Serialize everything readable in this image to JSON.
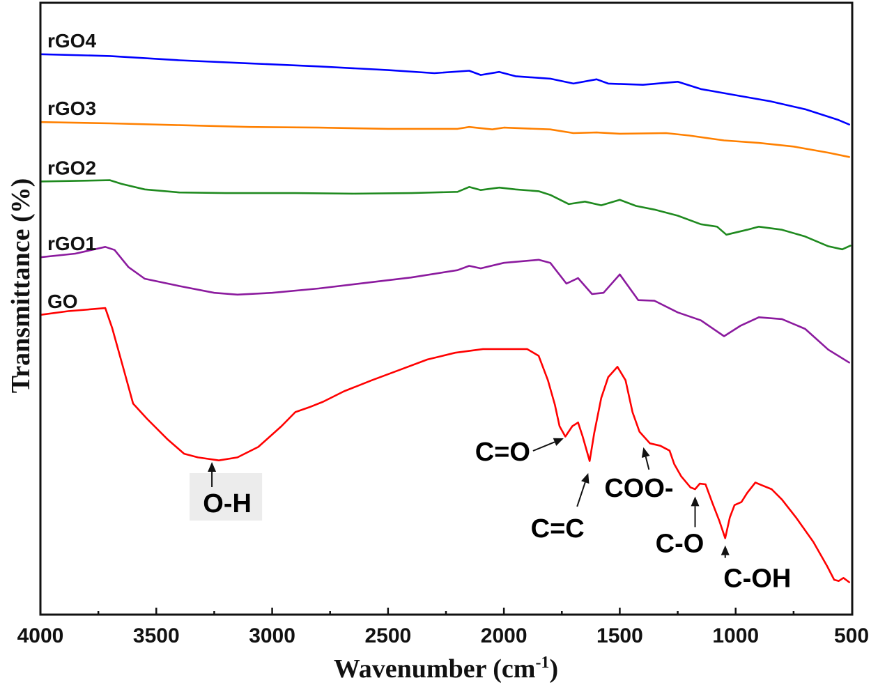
{
  "chart_data": {
    "type": "line",
    "title": "",
    "xlabel": "Wavenumber (cm",
    "xlabel_superscript": "-1",
    "xlabel_suffix": ")",
    "ylabel": "Transmittance (%)",
    "xlim": [
      4000,
      500
    ],
    "ylim": [
      0,
      100
    ],
    "y_units": "arbitrary (offset, no tick labels)",
    "x_ticks": [
      4000,
      3500,
      3000,
      2500,
      2000,
      1500,
      1000,
      500
    ],
    "x_tick_labels": [
      "4000",
      "3500",
      "3000",
      "2500",
      "2000",
      "1500",
      "1000",
      "500"
    ],
    "x_minor_ticks": [
      3750,
      3250,
      2750,
      2250,
      1750,
      1250,
      750
    ],
    "grid": false,
    "legend": "inline labels at left of each curve",
    "series": [
      {
        "name": "rGO4",
        "color": "#0000ff",
        "points": [
          [
            4000,
            91.6
          ],
          [
            3700,
            91.3
          ],
          [
            3400,
            90.6
          ],
          [
            3100,
            90.1
          ],
          [
            2800,
            89.6
          ],
          [
            2500,
            89.0
          ],
          [
            2300,
            88.5
          ],
          [
            2150,
            88.9
          ],
          [
            2100,
            88.2
          ],
          [
            2020,
            88.7
          ],
          [
            1950,
            88.0
          ],
          [
            1800,
            87.6
          ],
          [
            1700,
            86.8
          ],
          [
            1600,
            87.5
          ],
          [
            1550,
            86.8
          ],
          [
            1400,
            86.6
          ],
          [
            1250,
            87.1
          ],
          [
            1150,
            85.9
          ],
          [
            1000,
            84.9
          ],
          [
            850,
            83.9
          ],
          [
            700,
            82.6
          ],
          [
            560,
            80.9
          ],
          [
            510,
            80.1
          ]
        ]
      },
      {
        "name": "rGO3",
        "color": "#ff8000",
        "points": [
          [
            4000,
            80.5
          ],
          [
            3700,
            80.3
          ],
          [
            3400,
            80.0
          ],
          [
            3100,
            79.7
          ],
          [
            2800,
            79.6
          ],
          [
            2500,
            79.4
          ],
          [
            2200,
            79.4
          ],
          [
            2150,
            79.7
          ],
          [
            2050,
            79.3
          ],
          [
            2000,
            79.6
          ],
          [
            1800,
            79.3
          ],
          [
            1700,
            78.7
          ],
          [
            1600,
            78.8
          ],
          [
            1500,
            78.6
          ],
          [
            1300,
            78.7
          ],
          [
            1200,
            78.3
          ],
          [
            1050,
            77.5
          ],
          [
            900,
            77.1
          ],
          [
            750,
            76.5
          ],
          [
            600,
            75.5
          ],
          [
            510,
            74.8
          ]
        ]
      },
      {
        "name": "rGO2",
        "color": "#1f8a1f",
        "points": [
          [
            4000,
            70.8
          ],
          [
            3700,
            71.0
          ],
          [
            3650,
            70.4
          ],
          [
            3550,
            69.5
          ],
          [
            3400,
            69.0
          ],
          [
            3200,
            68.9
          ],
          [
            2900,
            68.9
          ],
          [
            2650,
            68.8
          ],
          [
            2400,
            68.9
          ],
          [
            2200,
            69.1
          ],
          [
            2150,
            69.9
          ],
          [
            2100,
            69.4
          ],
          [
            2020,
            69.8
          ],
          [
            1950,
            69.5
          ],
          [
            1850,
            69.2
          ],
          [
            1800,
            68.6
          ],
          [
            1720,
            67.1
          ],
          [
            1650,
            67.5
          ],
          [
            1580,
            66.9
          ],
          [
            1500,
            67.8
          ],
          [
            1430,
            66.8
          ],
          [
            1350,
            66.2
          ],
          [
            1250,
            65.2
          ],
          [
            1150,
            63.8
          ],
          [
            1080,
            63.4
          ],
          [
            1040,
            62.1
          ],
          [
            950,
            62.9
          ],
          [
            900,
            63.4
          ],
          [
            800,
            62.9
          ],
          [
            700,
            61.8
          ],
          [
            600,
            60.2
          ],
          [
            540,
            59.7
          ],
          [
            505,
            60.3
          ]
        ]
      },
      {
        "name": "rGO1",
        "color": "#8b1a9e",
        "points": [
          [
            4000,
            58.4
          ],
          [
            3850,
            59.0
          ],
          [
            3720,
            60.1
          ],
          [
            3680,
            59.6
          ],
          [
            3620,
            56.8
          ],
          [
            3550,
            54.9
          ],
          [
            3400,
            53.7
          ],
          [
            3250,
            52.6
          ],
          [
            3150,
            52.3
          ],
          [
            3000,
            52.6
          ],
          [
            2800,
            53.3
          ],
          [
            2600,
            54.2
          ],
          [
            2400,
            55.1
          ],
          [
            2200,
            56.3
          ],
          [
            2150,
            57.0
          ],
          [
            2100,
            56.6
          ],
          [
            2000,
            57.5
          ],
          [
            1850,
            58.0
          ],
          [
            1800,
            57.5
          ],
          [
            1730,
            54.1
          ],
          [
            1680,
            55.0
          ],
          [
            1620,
            52.4
          ],
          [
            1570,
            52.6
          ],
          [
            1500,
            55.6
          ],
          [
            1420,
            51.4
          ],
          [
            1350,
            51.3
          ],
          [
            1250,
            49.4
          ],
          [
            1150,
            48.1
          ],
          [
            1050,
            45.5
          ],
          [
            980,
            47.2
          ],
          [
            900,
            48.6
          ],
          [
            800,
            48.3
          ],
          [
            700,
            46.7
          ],
          [
            600,
            43.3
          ],
          [
            510,
            41.2
          ]
        ]
      },
      {
        "name": "GO",
        "color": "#ff0000",
        "points": [
          [
            4000,
            49.0
          ],
          [
            3880,
            49.6
          ],
          [
            3720,
            50.1
          ],
          [
            3690,
            46.8
          ],
          [
            3640,
            40.0
          ],
          [
            3600,
            34.5
          ],
          [
            3540,
            32.0
          ],
          [
            3450,
            28.6
          ],
          [
            3380,
            26.3
          ],
          [
            3320,
            25.7
          ],
          [
            3230,
            25.2
          ],
          [
            3150,
            25.7
          ],
          [
            3060,
            27.4
          ],
          [
            2960,
            30.8
          ],
          [
            2900,
            33.1
          ],
          [
            2840,
            33.9
          ],
          [
            2780,
            34.8
          ],
          [
            2690,
            36.5
          ],
          [
            2570,
            38.3
          ],
          [
            2450,
            40.0
          ],
          [
            2330,
            41.7
          ],
          [
            2210,
            42.8
          ],
          [
            2090,
            43.4
          ],
          [
            2030,
            43.4
          ],
          [
            1900,
            43.4
          ],
          [
            1850,
            42.3
          ],
          [
            1810,
            38.3
          ],
          [
            1780,
            34.3
          ],
          [
            1760,
            30.8
          ],
          [
            1735,
            29.1
          ],
          [
            1705,
            30.8
          ],
          [
            1680,
            31.4
          ],
          [
            1660,
            29.1
          ],
          [
            1630,
            25.1
          ],
          [
            1610,
            29.7
          ],
          [
            1580,
            35.4
          ],
          [
            1550,
            38.8
          ],
          [
            1510,
            40.5
          ],
          [
            1475,
            38.3
          ],
          [
            1445,
            33.1
          ],
          [
            1415,
            29.9
          ],
          [
            1370,
            28.0
          ],
          [
            1325,
            27.6
          ],
          [
            1285,
            26.8
          ],
          [
            1265,
            24.6
          ],
          [
            1235,
            22.6
          ],
          [
            1195,
            20.8
          ],
          [
            1175,
            20.5
          ],
          [
            1155,
            21.4
          ],
          [
            1130,
            21.3
          ],
          [
            1100,
            18.2
          ],
          [
            1070,
            15.3
          ],
          [
            1045,
            12.5
          ],
          [
            1025,
            15.9
          ],
          [
            1005,
            17.9
          ],
          [
            975,
            18.4
          ],
          [
            950,
            19.9
          ],
          [
            915,
            21.6
          ],
          [
            890,
            21.2
          ],
          [
            845,
            20.5
          ],
          [
            800,
            18.8
          ],
          [
            740,
            15.9
          ],
          [
            665,
            11.9
          ],
          [
            605,
            7.9
          ],
          [
            575,
            5.7
          ],
          [
            555,
            5.5
          ],
          [
            535,
            6.0
          ],
          [
            510,
            5.3
          ]
        ]
      }
    ],
    "annotations": [
      {
        "text": "O-H",
        "target": [
          3260,
          25.4
        ],
        "direction": "up",
        "boxed": true
      },
      {
        "text": "C=O",
        "target": [
          1730,
          29.5
        ],
        "direction": "diagonal-up-right"
      },
      {
        "text": "C=C",
        "target": [
          1630,
          24.5
        ],
        "direction": "diagonal-up-right"
      },
      {
        "text": "COO-",
        "target": [
          1380,
          27.8
        ],
        "direction": "up"
      },
      {
        "text": "C-O",
        "target": [
          1175,
          20.0
        ],
        "direction": "up"
      },
      {
        "text": "C-OH",
        "target": [
          1045,
          12.0
        ],
        "direction": "up"
      }
    ]
  }
}
